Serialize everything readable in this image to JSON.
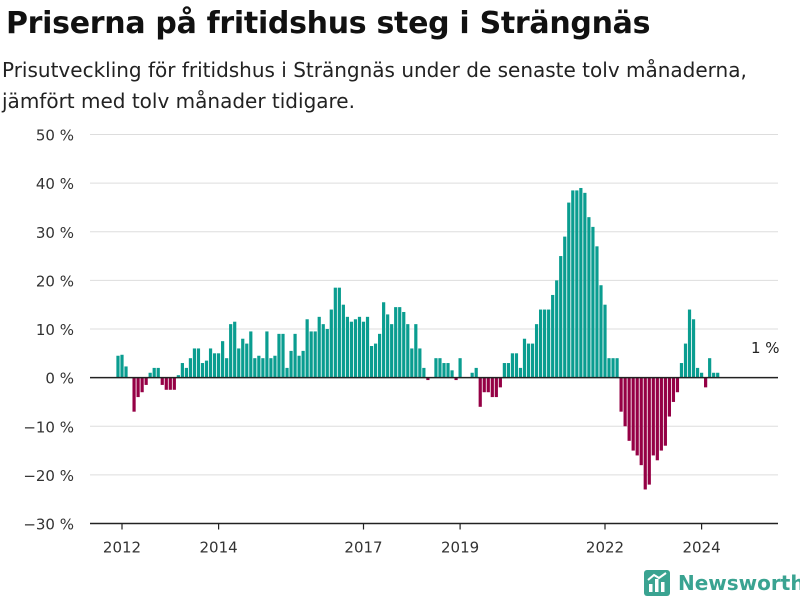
{
  "title": "Priserna på fritidshus steg i Strängnäs",
  "subtitle": "Prisutveckling för fritidshus i Strängnäs under de senaste tolv månaderna, jämfört med tolv månader tidigare.",
  "brand": {
    "label": "Newsworthy",
    "icon": "newsworthy-logo-icon"
  },
  "colors": {
    "positive": "#0a9d90",
    "negative": "#950045",
    "grid": "#dddddd",
    "axis": "#222222"
  },
  "chart_data": {
    "type": "bar",
    "title": "Priserna på fritidshus steg i Strängnäs",
    "xlabel": "",
    "ylabel": "",
    "ylim": [
      -30,
      50
    ],
    "yticks": [
      -30,
      -20,
      -10,
      0,
      10,
      20,
      30,
      40,
      50
    ],
    "ytick_labels": [
      "−30 %",
      "−20 %",
      "−10 %",
      "0 %",
      "10 %",
      "20 %",
      "30 %",
      "40 %",
      "50 %"
    ],
    "xticks": [
      2012,
      2014,
      2017,
      2019,
      2022,
      2024
    ],
    "xtick_labels": [
      "2012",
      "2014",
      "2017",
      "2019",
      "2022",
      "2024"
    ],
    "start_date": "2011-12",
    "grid": true,
    "annotation": {
      "date": "2025-03",
      "value": 1,
      "text": "1 %"
    },
    "values": [
      4.5,
      4.7,
      2.3,
      0,
      -7,
      -4,
      -3,
      -1.5,
      1,
      2,
      2,
      -1.5,
      -2.5,
      -2.5,
      -2.5,
      0.5,
      3,
      2,
      4,
      6,
      6,
      3,
      3.5,
      6,
      5,
      5,
      7.5,
      4,
      11,
      11.5,
      6,
      8,
      7,
      9.5,
      4,
      4.5,
      4,
      9.5,
      4,
      4.5,
      9,
      9,
      2,
      5.5,
      9,
      4.5,
      5.5,
      12,
      9.5,
      9.5,
      12.5,
      11,
      10,
      14,
      18.5,
      18.5,
      15,
      12.5,
      11.5,
      12,
      12.5,
      11.5,
      12.5,
      6.5,
      7,
      9,
      15.5,
      13,
      11,
      14.5,
      14.5,
      13.5,
      11,
      6,
      11,
      6,
      2,
      -0.5,
      0,
      4,
      4,
      3,
      3,
      1.5,
      -0.5,
      4,
      0,
      0,
      1,
      2,
      -6,
      -3,
      -3,
      -4,
      -4,
      -2,
      3,
      3,
      5,
      5,
      2,
      8,
      7,
      7,
      11,
      14,
      14,
      14,
      17,
      20,
      25,
      29,
      36,
      38.5,
      38.5,
      39,
      38,
      33,
      31,
      27,
      19,
      15,
      4,
      4,
      4,
      -7,
      -10,
      -13,
      -15,
      -16,
      -18,
      -23,
      -22,
      -16,
      -17,
      -15,
      -14,
      -8,
      -5,
      -3,
      3,
      7,
      14,
      12,
      2,
      1,
      -2,
      4,
      1,
      1
    ]
  }
}
